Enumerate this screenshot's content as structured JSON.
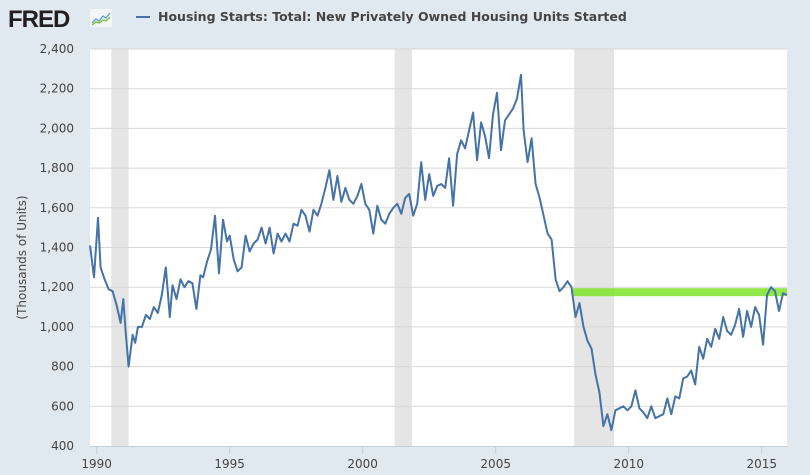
{
  "header": {
    "logo_text": "FRED",
    "logo_icon": "line-chart-icon",
    "legend_label": "Housing Starts: Total: New Privately Owned Housing Units Started"
  },
  "colors": {
    "series": "#4572a7",
    "recession": "#e5e5e5",
    "highlight": "#7fe32a",
    "background": "#e1e9f0",
    "grid": "#d8d8d8"
  },
  "chart_data": {
    "type": "line",
    "title": "Housing Starts: Total: New Privately Owned Housing Units Started",
    "xlabel": "",
    "ylabel": "(Thousands of Units)",
    "xlim": [
      1989.75,
      2015.95
    ],
    "ylim": [
      400,
      2400
    ],
    "grid": true,
    "legend": "top-left",
    "x_ticks": [
      1990,
      1995,
      2000,
      2005,
      2010,
      2015
    ],
    "x_tick_labels": [
      "1990",
      "1995",
      "2000",
      "2005",
      "2010",
      "2015"
    ],
    "y_ticks": [
      400,
      600,
      800,
      1000,
      1200,
      1400,
      1600,
      1800,
      2000,
      2200,
      2400
    ],
    "y_tick_labels": [
      "400",
      "600",
      "800",
      "1,000",
      "1,200",
      "1,400",
      "1,600",
      "1,800",
      "2,000",
      "2,200",
      "2,400"
    ],
    "recessions": [
      [
        1990.55,
        1991.2
      ],
      [
        2001.2,
        2001.85
      ],
      [
        2007.95,
        2009.45
      ]
    ],
    "highlight_line": {
      "y": 1175,
      "x_start": 2007.9,
      "x_end": 2015.95
    },
    "series": [
      {
        "name": "Housing Starts: Total: New Privately Owned Housing Units Started",
        "x": [
          1989.75,
          1989.9,
          1990.05,
          1990.15,
          1990.3,
          1990.45,
          1990.6,
          1990.75,
          1990.9,
          1991.0,
          1991.1,
          1991.2,
          1991.35,
          1991.45,
          1991.55,
          1991.7,
          1991.85,
          1992.0,
          1992.15,
          1992.3,
          1992.45,
          1992.6,
          1992.75,
          1992.85,
          1993.0,
          1993.15,
          1993.3,
          1993.45,
          1993.6,
          1993.75,
          1993.9,
          1994.0,
          1994.15,
          1994.3,
          1994.45,
          1994.6,
          1994.75,
          1994.9,
          1995.0,
          1995.15,
          1995.3,
          1995.45,
          1995.6,
          1995.75,
          1995.9,
          1996.05,
          1996.2,
          1996.35,
          1996.5,
          1996.65,
          1996.8,
          1996.95,
          1997.1,
          1997.25,
          1997.4,
          1997.55,
          1997.7,
          1997.85,
          1998.0,
          1998.15,
          1998.3,
          1998.45,
          1998.6,
          1998.75,
          1998.9,
          1999.05,
          1999.2,
          1999.35,
          1999.5,
          1999.65,
          1999.8,
          1999.95,
          2000.1,
          2000.25,
          2000.4,
          2000.55,
          2000.7,
          2000.85,
          2001.0,
          2001.15,
          2001.3,
          2001.45,
          2001.6,
          2001.75,
          2001.9,
          2002.05,
          2002.2,
          2002.35,
          2002.5,
          2002.65,
          2002.8,
          2002.95,
          2003.1,
          2003.25,
          2003.4,
          2003.55,
          2003.7,
          2003.85,
          2004.0,
          2004.15,
          2004.3,
          2004.45,
          2004.6,
          2004.75,
          2004.9,
          2005.05,
          2005.2,
          2005.35,
          2005.5,
          2005.65,
          2005.8,
          2005.95,
          2006.05,
          2006.2,
          2006.35,
          2006.5,
          2006.65,
          2006.8,
          2006.95,
          2007.1,
          2007.25,
          2007.4,
          2007.55,
          2007.7,
          2007.85,
          2008.0,
          2008.15,
          2008.3,
          2008.45,
          2008.6,
          2008.75,
          2008.9,
          2009.05,
          2009.2,
          2009.35,
          2009.5,
          2009.65,
          2009.8,
          2009.95,
          2010.1,
          2010.25,
          2010.4,
          2010.55,
          2010.7,
          2010.85,
          2011.0,
          2011.15,
          2011.3,
          2011.45,
          2011.6,
          2011.75,
          2011.9,
          2012.05,
          2012.2,
          2012.35,
          2012.5,
          2012.65,
          2012.8,
          2012.95,
          2013.1,
          2013.25,
          2013.4,
          2013.55,
          2013.7,
          2013.85,
          2014.0,
          2014.15,
          2014.3,
          2014.45,
          2014.6,
          2014.75,
          2014.9,
          2015.05,
          2015.2,
          2015.35,
          2015.5,
          2015.65,
          2015.8,
          2015.95
        ],
        "values": [
          1410,
          1250,
          1550,
          1300,
          1240,
          1190,
          1180,
          1110,
          1020,
          1140,
          960,
          800,
          960,
          920,
          1000,
          1000,
          1060,
          1040,
          1100,
          1070,
          1160,
          1300,
          1050,
          1210,
          1140,
          1240,
          1200,
          1230,
          1220,
          1090,
          1260,
          1250,
          1330,
          1390,
          1560,
          1270,
          1540,
          1430,
          1460,
          1340,
          1280,
          1300,
          1460,
          1380,
          1420,
          1440,
          1500,
          1420,
          1500,
          1370,
          1470,
          1430,
          1470,
          1430,
          1520,
          1510,
          1590,
          1560,
          1480,
          1590,
          1560,
          1620,
          1700,
          1790,
          1640,
          1760,
          1630,
          1700,
          1640,
          1620,
          1660,
          1720,
          1620,
          1590,
          1470,
          1610,
          1540,
          1520,
          1570,
          1600,
          1620,
          1570,
          1650,
          1670,
          1560,
          1620,
          1830,
          1640,
          1770,
          1660,
          1710,
          1720,
          1700,
          1850,
          1610,
          1870,
          1940,
          1900,
          1990,
          2080,
          1840,
          2030,
          1960,
          1850,
          2070,
          2180,
          1890,
          2040,
          2070,
          2100,
          2150,
          2270,
          1990,
          1830,
          1950,
          1720,
          1650,
          1560,
          1470,
          1440,
          1240,
          1180,
          1200,
          1230,
          1200,
          1050,
          1120,
          1000,
          930,
          890,
          760,
          670,
          500,
          560,
          480,
          580,
          590,
          600,
          580,
          600,
          680,
          590,
          570,
          540,
          600,
          540,
          550,
          560,
          640,
          560,
          650,
          640,
          740,
          750,
          780,
          710,
          900,
          840,
          940,
          900,
          990,
          940,
          1050,
          980,
          960,
          1010,
          1090,
          950,
          1080,
          1000,
          1100,
          1060,
          910,
          1160,
          1200,
          1180,
          1080,
          1170,
          1160
        ]
      }
    ]
  }
}
